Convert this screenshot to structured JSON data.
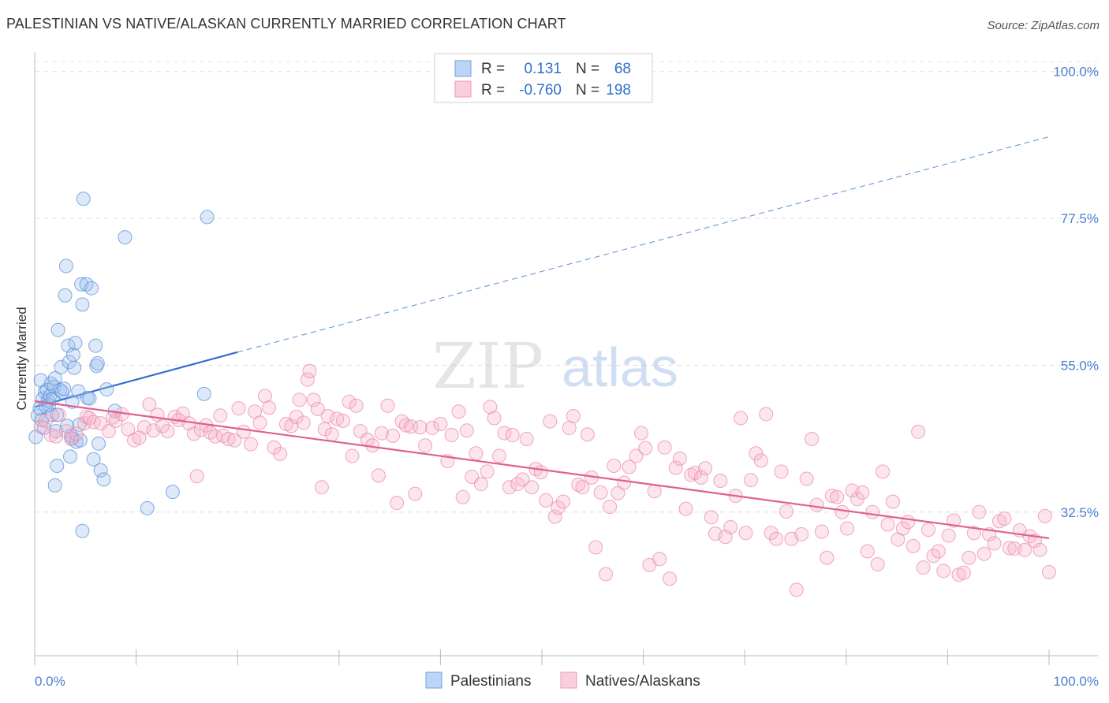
{
  "title": "PALESTINIAN VS NATIVE/ALASKAN CURRENTLY MARRIED CORRELATION CHART",
  "source": "Source: ZipAtlas.com",
  "watermark": {
    "zip": "ZIP",
    "atlas": "atlas"
  },
  "legend": {
    "r_label": "R =",
    "n_label": "N =",
    "rows": [
      {
        "r": "0.131",
        "n": "68",
        "color": "#6fa0e0"
      },
      {
        "r": "-0.760",
        "n": "198",
        "color": "#ef9ab8"
      }
    ]
  },
  "bottom_legend": [
    {
      "label": "Palestinians",
      "color": "#6fa0e0"
    },
    {
      "label": "Natives/Alaskans",
      "color": "#ef9ab8"
    }
  ],
  "chart_data": {
    "type": "scatter",
    "title": "PALESTINIAN VS NATIVE/ALASKAN CURRENTLY MARRIED CORRELATION CHART",
    "xlabel": "",
    "ylabel": "Currently Married",
    "xlim": [
      0,
      100
    ],
    "ylim": [
      10.5,
      102.5
    ],
    "x_tick_labels": [
      "0.0%",
      "100.0%"
    ],
    "y_ticks": [
      32.5,
      55.0,
      77.5,
      100.0
    ],
    "y_tick_labels": [
      "32.5%",
      "55.0%",
      "77.5%",
      "100.0%"
    ],
    "grid": true,
    "legend_position": "top-center",
    "colors": {
      "palestinians": "#3a78d8",
      "natives": "#e0608f"
    },
    "series": [
      {
        "name": "Palestinians",
        "r": 0.131,
        "n": 68,
        "trend": {
          "x0": 0,
          "y0": 48.6,
          "x1": 20,
          "y1": 57.0,
          "dashed_to_x": 100,
          "dashed_to_y": 90.0
        },
        "points": [
          [
            0.1,
            44.0
          ],
          [
            0.3,
            47.3
          ],
          [
            0.5,
            48.4
          ],
          [
            0.6,
            52.7
          ],
          [
            0.7,
            46.6
          ],
          [
            0.8,
            49.9
          ],
          [
            0.9,
            45.4
          ],
          [
            1.0,
            50.9
          ],
          [
            1.1,
            48.7
          ],
          [
            1.2,
            51.2
          ],
          [
            1.3,
            49.6
          ],
          [
            1.4,
            48.9
          ],
          [
            1.5,
            50.3
          ],
          [
            1.6,
            52.2
          ],
          [
            1.7,
            47.4
          ],
          [
            1.8,
            49.9
          ],
          [
            1.9,
            51.7
          ],
          [
            2.0,
            53.0
          ],
          [
            2.1,
            44.9
          ],
          [
            2.2,
            47.4
          ],
          [
            2.0,
            36.6
          ],
          [
            2.2,
            39.6
          ],
          [
            2.3,
            60.4
          ],
          [
            2.5,
            51.2
          ],
          [
            2.6,
            54.7
          ],
          [
            2.7,
            50.9
          ],
          [
            2.9,
            51.4
          ],
          [
            3.0,
            65.7
          ],
          [
            3.1,
            70.2
          ],
          [
            3.2,
            45.7
          ],
          [
            3.3,
            58.0
          ],
          [
            3.4,
            55.5
          ],
          [
            3.5,
            41.0
          ],
          [
            3.6,
            44.2
          ],
          [
            3.7,
            43.8
          ],
          [
            3.7,
            49.4
          ],
          [
            3.8,
            56.6
          ],
          [
            3.9,
            54.6
          ],
          [
            4.0,
            58.4
          ],
          [
            4.1,
            43.3
          ],
          [
            4.3,
            51.0
          ],
          [
            4.4,
            45.9
          ],
          [
            4.5,
            43.5
          ],
          [
            4.6,
            67.4
          ],
          [
            4.7,
            64.3
          ],
          [
            4.8,
            80.5
          ],
          [
            5.1,
            67.4
          ],
          [
            5.2,
            50.0
          ],
          [
            5.4,
            49.9
          ],
          [
            5.6,
            66.8
          ],
          [
            5.8,
            40.6
          ],
          [
            6.0,
            58.0
          ],
          [
            6.1,
            54.9
          ],
          [
            6.2,
            55.3
          ],
          [
            6.3,
            43.0
          ],
          [
            6.5,
            38.9
          ],
          [
            6.8,
            37.5
          ],
          [
            7.1,
            51.3
          ],
          [
            7.9,
            48.0
          ],
          [
            8.9,
            74.6
          ],
          [
            11.1,
            33.1
          ],
          [
            13.6,
            35.6
          ],
          [
            16.7,
            50.6
          ],
          [
            17.0,
            77.7
          ],
          [
            4.7,
            29.6
          ]
        ]
      },
      {
        "name": "Natives/Alaskans",
        "r": -0.76,
        "n": 198,
        "trend": {
          "x0": 0,
          "y0": 49.5,
          "x1": 100,
          "y1": 28.5
        },
        "points": [
          [
            0.6,
            45.6
          ],
          [
            1.1,
            46.5
          ],
          [
            1.6,
            44.3
          ],
          [
            2.1,
            44.1
          ],
          [
            2.4,
            47.4
          ],
          [
            3.1,
            44.9
          ],
          [
            3.6,
            43.7
          ],
          [
            4.1,
            44.5
          ],
          [
            4.9,
            46.1
          ],
          [
            5.1,
            47.1
          ],
          [
            5.4,
            46.9
          ],
          [
            5.8,
            46.3
          ],
          [
            6.5,
            46.1
          ],
          [
            7.3,
            44.9
          ],
          [
            7.7,
            47.0
          ],
          [
            8.0,
            46.5
          ],
          [
            8.6,
            47.5
          ],
          [
            9.2,
            45.2
          ],
          [
            9.8,
            43.5
          ],
          [
            10.3,
            43.9
          ],
          [
            10.8,
            45.5
          ],
          [
            11.3,
            49.0
          ],
          [
            11.7,
            45.0
          ],
          [
            12.1,
            47.4
          ],
          [
            12.6,
            45.7
          ],
          [
            13.1,
            44.9
          ],
          [
            13.8,
            47.1
          ],
          [
            14.2,
            46.6
          ],
          [
            14.6,
            47.6
          ],
          [
            15.2,
            46.1
          ],
          [
            15.7,
            44.5
          ],
          [
            16.0,
            38.0
          ],
          [
            16.4,
            45.1
          ],
          [
            16.9,
            45.8
          ],
          [
            17.3,
            44.7
          ],
          [
            17.8,
            44.1
          ],
          [
            18.3,
            47.3
          ],
          [
            18.6,
            44.2
          ],
          [
            19.1,
            43.7
          ],
          [
            19.7,
            43.5
          ],
          [
            20.1,
            48.4
          ],
          [
            20.6,
            44.8
          ],
          [
            21.3,
            42.9
          ],
          [
            21.7,
            47.9
          ],
          [
            22.2,
            46.2
          ],
          [
            22.7,
            50.3
          ],
          [
            23.1,
            48.5
          ],
          [
            23.6,
            42.4
          ],
          [
            24.2,
            41.4
          ],
          [
            24.8,
            46.0
          ],
          [
            25.3,
            45.7
          ],
          [
            25.8,
            47.1
          ],
          [
            26.1,
            49.7
          ],
          [
            26.5,
            46.2
          ],
          [
            26.9,
            52.8
          ],
          [
            27.1,
            54.1
          ],
          [
            27.5,
            49.7
          ],
          [
            27.9,
            48.3
          ],
          [
            28.3,
            36.3
          ],
          [
            28.6,
            45.2
          ],
          [
            28.9,
            47.2
          ],
          [
            29.3,
            44.4
          ],
          [
            29.8,
            46.8
          ],
          [
            30.4,
            46.5
          ],
          [
            31.0,
            49.4
          ],
          [
            31.3,
            41.1
          ],
          [
            31.7,
            48.8
          ],
          [
            32.1,
            44.9
          ],
          [
            32.8,
            43.6
          ],
          [
            33.3,
            42.7
          ],
          [
            33.9,
            38.1
          ],
          [
            34.2,
            44.6
          ],
          [
            34.8,
            48.8
          ],
          [
            35.3,
            44.2
          ],
          [
            35.7,
            33.9
          ],
          [
            36.2,
            46.4
          ],
          [
            36.6,
            45.8
          ],
          [
            37.1,
            45.6
          ],
          [
            37.5,
            35.3
          ],
          [
            38.0,
            45.5
          ],
          [
            38.5,
            42.7
          ],
          [
            39.2,
            45.4
          ],
          [
            40.0,
            46.0
          ],
          [
            40.7,
            40.3
          ],
          [
            41.1,
            44.3
          ],
          [
            41.8,
            47.9
          ],
          [
            42.2,
            34.8
          ],
          [
            42.6,
            45.0
          ],
          [
            43.1,
            37.9
          ],
          [
            43.5,
            41.5
          ],
          [
            44.0,
            36.8
          ],
          [
            44.6,
            38.7
          ],
          [
            44.9,
            48.6
          ],
          [
            45.3,
            46.9
          ],
          [
            45.8,
            41.1
          ],
          [
            46.3,
            44.6
          ],
          [
            46.8,
            36.3
          ],
          [
            47.1,
            44.3
          ],
          [
            47.6,
            36.8
          ],
          [
            48.1,
            37.5
          ],
          [
            48.5,
            43.7
          ],
          [
            49.0,
            36.3
          ],
          [
            49.4,
            39.1
          ],
          [
            49.9,
            38.6
          ],
          [
            50.4,
            34.3
          ],
          [
            50.8,
            46.4
          ],
          [
            51.3,
            31.8
          ],
          [
            51.6,
            33.2
          ],
          [
            52.1,
            34.1
          ],
          [
            52.7,
            45.4
          ],
          [
            53.1,
            47.2
          ],
          [
            53.6,
            36.7
          ],
          [
            54.0,
            36.3
          ],
          [
            54.5,
            44.4
          ],
          [
            54.9,
            37.8
          ],
          [
            55.3,
            27.1
          ],
          [
            55.8,
            35.5
          ],
          [
            56.3,
            23.0
          ],
          [
            56.7,
            33.3
          ],
          [
            57.1,
            39.6
          ],
          [
            57.5,
            35.4
          ],
          [
            58.1,
            37.0
          ],
          [
            58.6,
            39.4
          ],
          [
            59.3,
            41.1
          ],
          [
            59.8,
            44.6
          ],
          [
            60.2,
            42.3
          ],
          [
            60.6,
            24.4
          ],
          [
            61.1,
            35.7
          ],
          [
            61.6,
            25.3
          ],
          [
            62.1,
            42.4
          ],
          [
            62.6,
            22.3
          ],
          [
            63.2,
            39.3
          ],
          [
            63.6,
            40.7
          ],
          [
            64.2,
            33.0
          ],
          [
            64.7,
            38.2
          ],
          [
            65.1,
            38.5
          ],
          [
            65.7,
            37.8
          ],
          [
            66.1,
            39.2
          ],
          [
            66.7,
            31.7
          ],
          [
            67.1,
            29.2
          ],
          [
            67.6,
            37.3
          ],
          [
            68.1,
            28.7
          ],
          [
            68.6,
            30.2
          ],
          [
            69.1,
            35.0
          ],
          [
            69.6,
            46.9
          ],
          [
            70.1,
            29.3
          ],
          [
            70.6,
            37.4
          ],
          [
            71.1,
            41.5
          ],
          [
            71.6,
            40.4
          ],
          [
            72.1,
            47.5
          ],
          [
            72.6,
            29.3
          ],
          [
            73.1,
            28.4
          ],
          [
            73.6,
            38.7
          ],
          [
            74.1,
            32.6
          ],
          [
            74.6,
            28.4
          ],
          [
            75.1,
            20.6
          ],
          [
            75.6,
            29.1
          ],
          [
            76.1,
            37.6
          ],
          [
            76.6,
            43.7
          ],
          [
            77.1,
            33.6
          ],
          [
            77.6,
            29.5
          ],
          [
            78.1,
            25.5
          ],
          [
            78.6,
            35.0
          ],
          [
            79.1,
            34.8
          ],
          [
            79.6,
            32.5
          ],
          [
            80.1,
            30.0
          ],
          [
            80.6,
            35.8
          ],
          [
            81.1,
            34.5
          ],
          [
            81.6,
            35.5
          ],
          [
            82.1,
            26.5
          ],
          [
            82.6,
            32.5
          ],
          [
            83.1,
            24.5
          ],
          [
            83.6,
            38.7
          ],
          [
            84.1,
            30.6
          ],
          [
            84.6,
            34.1
          ],
          [
            85.1,
            28.3
          ],
          [
            85.6,
            30.0
          ],
          [
            86.1,
            31.0
          ],
          [
            86.6,
            27.3
          ],
          [
            87.1,
            44.8
          ],
          [
            87.6,
            24.0
          ],
          [
            88.1,
            29.8
          ],
          [
            88.6,
            25.8
          ],
          [
            89.1,
            26.5
          ],
          [
            89.6,
            23.5
          ],
          [
            90.1,
            28.9
          ],
          [
            90.6,
            31.2
          ],
          [
            91.1,
            22.9
          ],
          [
            91.6,
            23.2
          ],
          [
            92.1,
            25.5
          ],
          [
            92.6,
            29.3
          ],
          [
            93.1,
            32.5
          ],
          [
            93.6,
            26.1
          ],
          [
            94.1,
            29.1
          ],
          [
            94.6,
            27.7
          ],
          [
            95.1,
            31.1
          ],
          [
            95.6,
            31.5
          ],
          [
            96.1,
            27.0
          ],
          [
            96.6,
            26.9
          ],
          [
            97.1,
            29.7
          ],
          [
            97.6,
            26.7
          ],
          [
            98.1,
            28.8
          ],
          [
            98.6,
            28.1
          ],
          [
            99.1,
            26.7
          ],
          [
            99.6,
            31.9
          ],
          [
            100.0,
            23.3
          ]
        ]
      }
    ]
  }
}
